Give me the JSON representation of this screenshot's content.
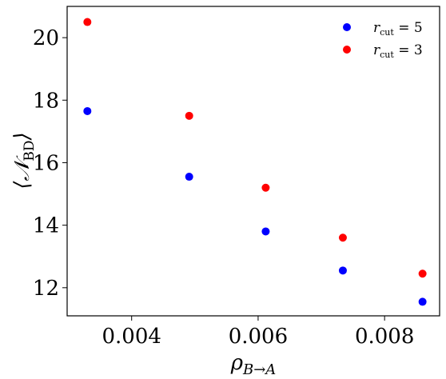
{
  "chart_data": {
    "type": "scatter",
    "xlabel": "ρB→A",
    "xlabel_main": "ρ",
    "xlabel_sub": "B→A",
    "ylabel": "⟨𝒩BD⟩",
    "ylabel_main": "⟨𝒩",
    "ylabel_sub": "BD",
    "ylabel_close": "⟩",
    "xlim": [
      0.00298,
      0.00887
    ],
    "ylim": [
      11.1,
      21.0
    ],
    "xticks": [
      0.004,
      0.006,
      0.008
    ],
    "xtick_labels": [
      "0.004",
      "0.006",
      "0.008"
    ],
    "yticks": [
      12,
      14,
      16,
      18,
      20
    ],
    "ytick_labels": [
      "12",
      "14",
      "16",
      "18",
      "20"
    ],
    "grid": false,
    "legend_position": "top-right",
    "x": [
      0.0033,
      0.00491,
      0.00612,
      0.00734,
      0.0086
    ],
    "series": [
      {
        "name": "r_cut = 5",
        "name_main": "r",
        "name_sub": "cut",
        "name_rest": " = 5",
        "color": "#0000ff",
        "values": [
          17.65,
          15.55,
          13.8,
          12.55,
          11.55
        ]
      },
      {
        "name": "r_cut = 3",
        "name_main": "r",
        "name_sub": "cut",
        "name_rest": " = 3",
        "color": "#ff0000",
        "values": [
          20.5,
          17.5,
          15.2,
          13.6,
          12.45
        ]
      }
    ]
  }
}
